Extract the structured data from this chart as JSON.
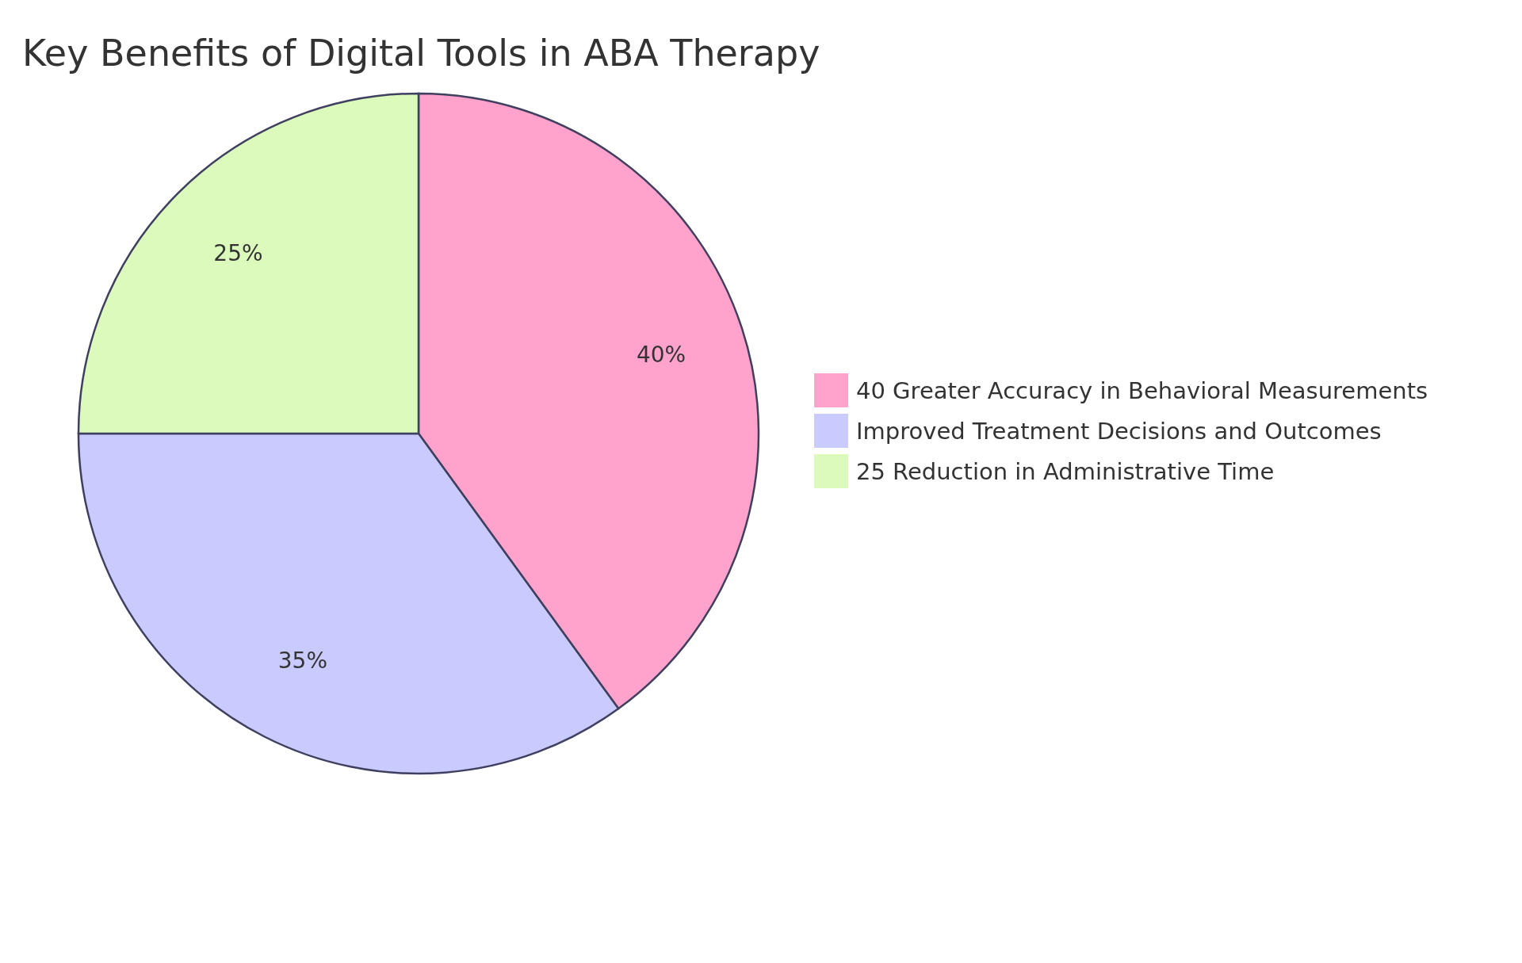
{
  "chart_data": {
    "type": "pie",
    "title": "Key Benefits of Digital Tools in ABA Therapy",
    "categories": [
      "40 Greater Accuracy in Behavioral Measurements",
      "Improved Treatment Decisions and Outcomes",
      "25 Reduction in Administrative Time"
    ],
    "values": [
      40,
      35,
      25
    ],
    "colors": [
      "#ffa3cd",
      "#c9cbfe",
      "#dcfabc"
    ],
    "value_labels": [
      "40%",
      "35%",
      "25%"
    ],
    "legend": "right"
  }
}
